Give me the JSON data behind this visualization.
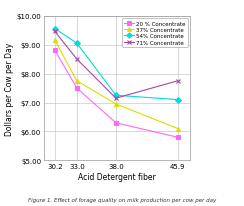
{
  "x": [
    30.2,
    33.0,
    38.0,
    45.9
  ],
  "series": [
    {
      "label": "20 % Concentrate",
      "color": "#FF66FF",
      "marker": "s",
      "values": [
        8.8,
        7.5,
        6.3,
        5.8
      ]
    },
    {
      "label": "37% Concentrate",
      "color": "#DDDD00",
      "marker": "^",
      "values": [
        9.15,
        7.75,
        6.95,
        6.1
      ]
    },
    {
      "label": "54% Concentrate",
      "color": "#00DDDD",
      "marker": "D",
      "values": [
        9.55,
        9.05,
        7.25,
        7.1
      ]
    },
    {
      "label": "71% Concentrate",
      "color": "#AA44AA",
      "marker": "x",
      "values": [
        9.45,
        8.5,
        7.15,
        7.75
      ]
    }
  ],
  "xlabel": "Acid Detergent fiber",
  "ylabel": "Dollars per Cow per Day",
  "ylim": [
    5.0,
    10.0
  ],
  "yticks": [
    5.0,
    6.0,
    7.0,
    8.0,
    9.0,
    10.0
  ],
  "ytick_labels": [
    "$5.00",
    "$6.00",
    "$7.00",
    "$8.00",
    "$9.00",
    "$10.00"
  ],
  "xtick_labels": [
    "30.2",
    "33.0",
    "38.0",
    "45.9"
  ],
  "caption": "Figure 1. Effect of forage quality on milk production per cow per day",
  "background_color": "#FFFFFF"
}
